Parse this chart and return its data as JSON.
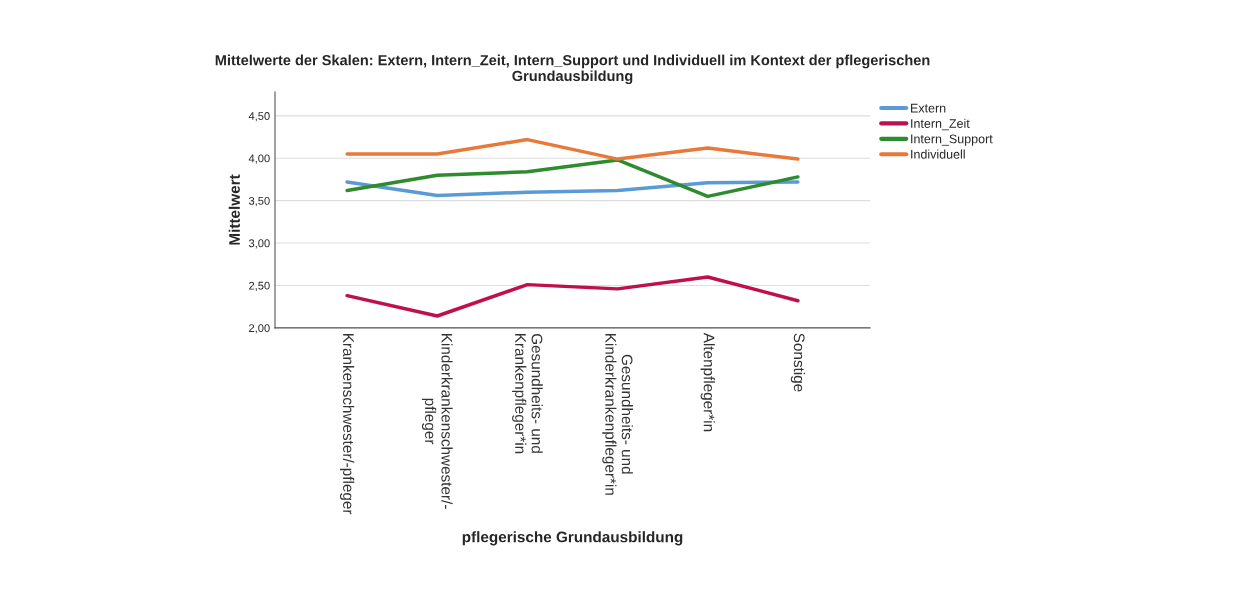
{
  "chart_data": {
    "type": "line",
    "title": "Mittelwerte der Skalen: Extern, Intern_Zeit, Intern_Support und Individuell im Kontext der pflegerischen\nGrundausbildung",
    "xlabel": "pflegerische Grundausbildung",
    "ylabel": "Mittelwert",
    "categories": [
      "Krankenschwester/-pfleger",
      "Kinderkrankenschwester/-\npfleger",
      "Gesundheits- und\nKrankenpfleger*in",
      "Gesundheits- und\nKinderkrankenpfleger*in",
      "Altenpfleger*in",
      "Sonstige"
    ],
    "series": [
      {
        "name": "Extern",
        "color": "#5b9bd5",
        "values": [
          3.72,
          3.56,
          3.6,
          3.62,
          3.71,
          3.72
        ]
      },
      {
        "name": "Intern_Zeit",
        "color": "#c0104a",
        "values": [
          2.38,
          2.14,
          2.51,
          2.46,
          2.6,
          2.32
        ]
      },
      {
        "name": "Intern_Support",
        "color": "#2e8b2e",
        "values": [
          3.62,
          3.8,
          3.84,
          3.98,
          3.55,
          3.78
        ]
      },
      {
        "name": "Individuell",
        "color": "#e8793a",
        "values": [
          4.05,
          4.05,
          4.22,
          3.99,
          4.12,
          3.99
        ]
      }
    ],
    "ylim": [
      2.0,
      4.78
    ],
    "yticks": [
      {
        "value": 2.0,
        "label": "2,00"
      },
      {
        "value": 2.5,
        "label": "2,50"
      },
      {
        "value": 3.0,
        "label": "3,00"
      },
      {
        "value": 3.5,
        "label": "3,50"
      },
      {
        "value": 4.0,
        "label": "4,00"
      },
      {
        "value": 4.5,
        "label": "4,50"
      }
    ],
    "grid": "y",
    "legend": "top right",
    "marker": "none",
    "line_style": "solid"
  }
}
